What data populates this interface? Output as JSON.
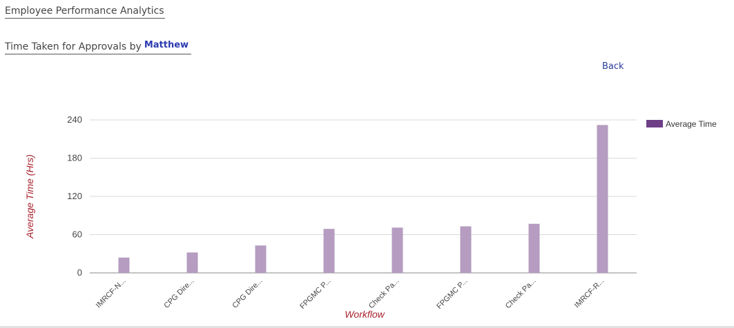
{
  "header": {
    "title": "Employee Performance Analytics",
    "subtitle_prefix": "Time Taken for Approvals by",
    "user_name": "Matthew",
    "back_label": "Back"
  },
  "chart_data": {
    "type": "bar",
    "categories": [
      "IMRCF-N...",
      "CPG Dire...",
      "CPG Dire...",
      "FPGMC P...",
      "Check Pa...",
      "FPGMC P...",
      "Check Pa...",
      "IMRCF-R..."
    ],
    "series": [
      {
        "name": "Average Time",
        "values": [
          24,
          32,
          43,
          69,
          71,
          73,
          77,
          232
        ],
        "color": "#b59cc0"
      }
    ],
    "legend_color": "#6e3f87",
    "xlabel": "Workflow",
    "ylabel": "Average Time (Hrs)",
    "ylim": [
      0,
      240
    ],
    "yticks": [
      0,
      60,
      120,
      180,
      240
    ],
    "grid": true,
    "legend": "right"
  }
}
